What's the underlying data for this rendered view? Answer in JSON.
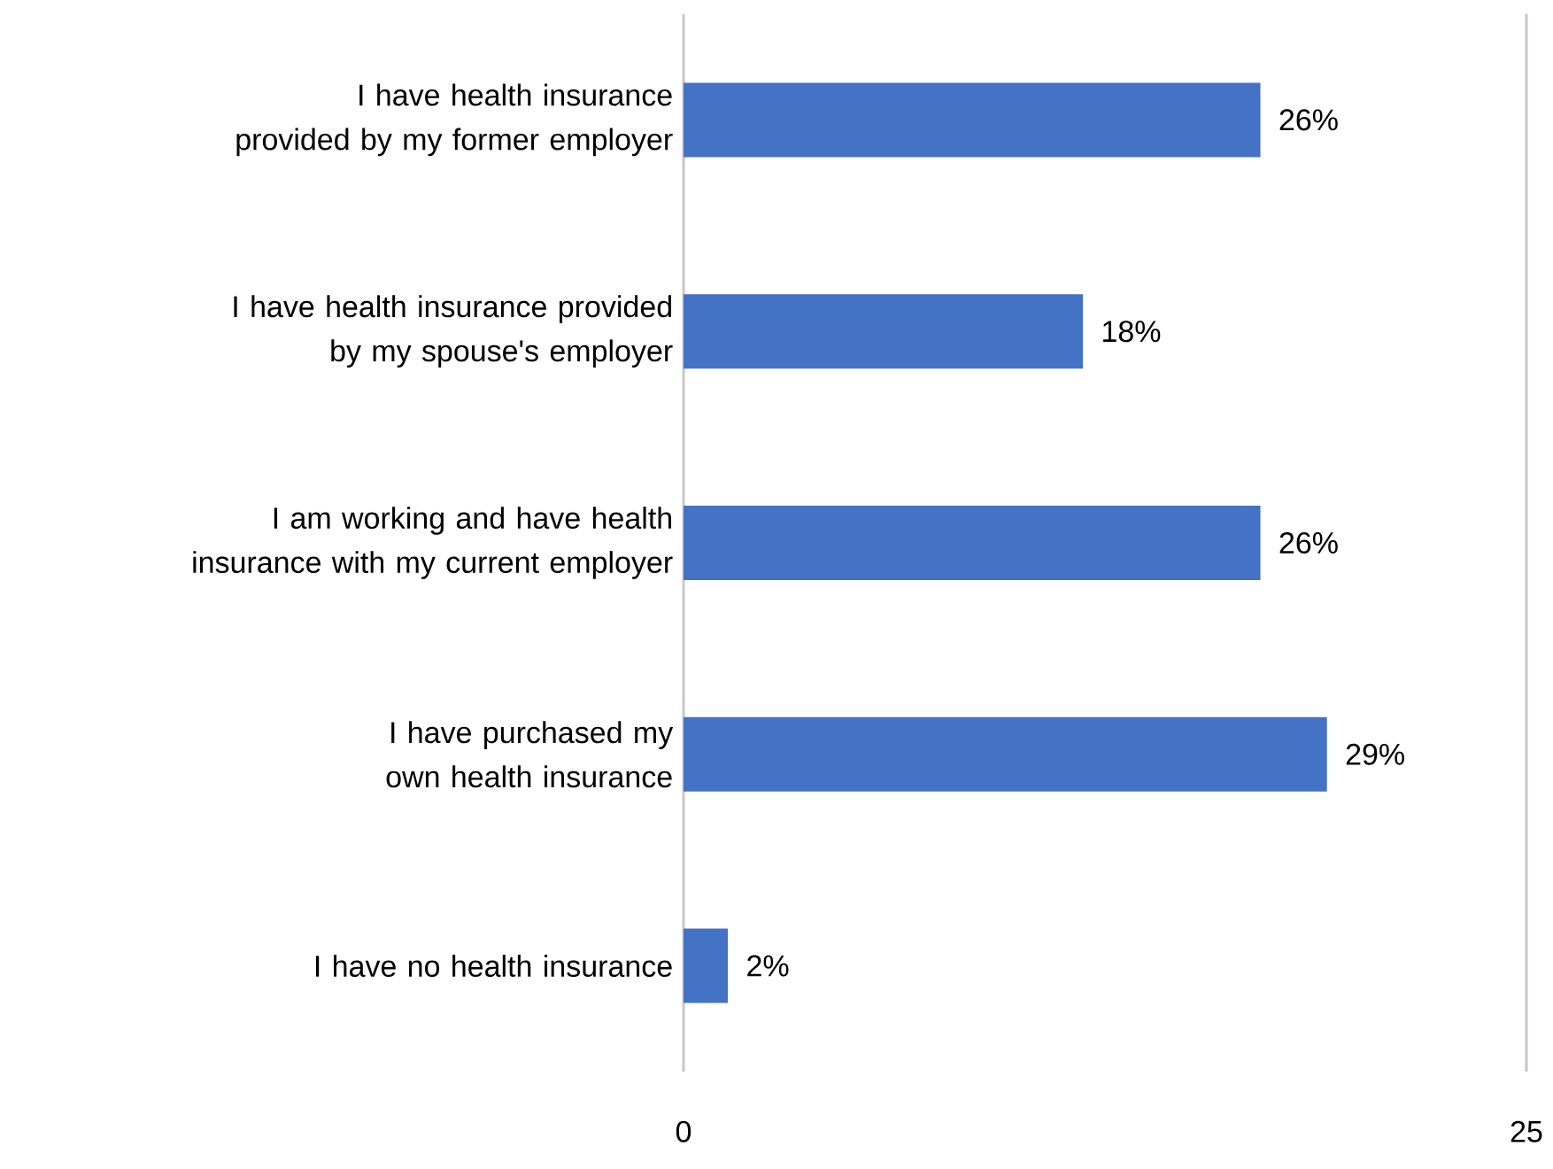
{
  "chart_data": {
    "type": "bar",
    "orientation": "horizontal",
    "categories": [
      "I have health insurance provided by my former employer",
      "I have health insurance provided by my spouse's employer",
      "I am working and have health insurance with my current employer",
      "I have purchased my own health insurance",
      "I have no health insurance"
    ],
    "values": [
      26,
      18,
      26,
      29,
      2
    ],
    "value_labels": [
      "26%",
      "18%",
      "26%",
      "29%",
      "2%"
    ],
    "color": "#4472c4",
    "annotations": [
      "0",
      "25"
    ]
  }
}
